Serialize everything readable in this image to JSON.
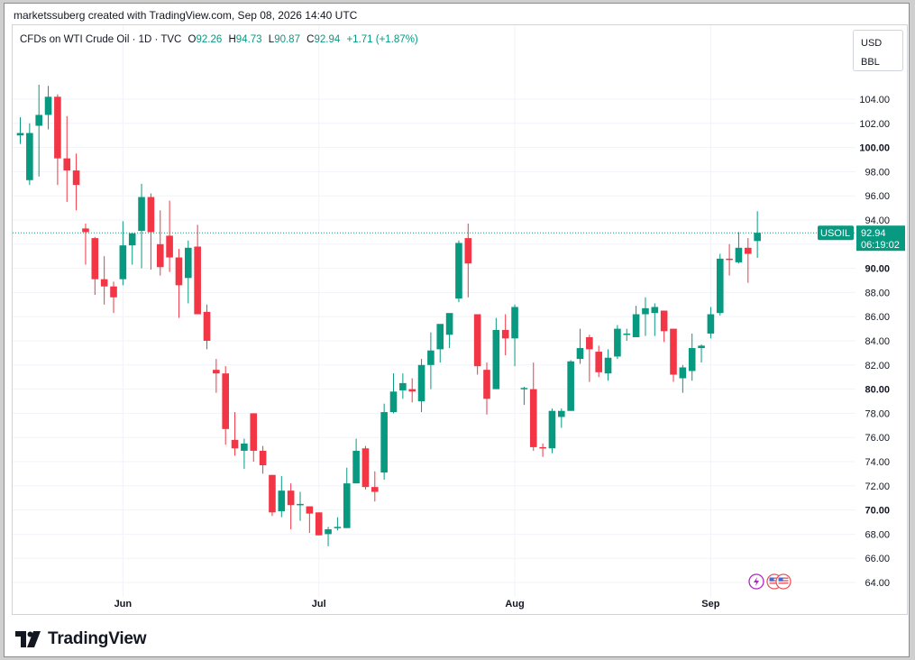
{
  "header": {
    "caption": "marketssuberg created with TradingView.com, Sep 08, 2026 14:40 UTC"
  },
  "legend": {
    "symbol": "CFDs on WTI Crude Oil · 1D · TVC",
    "open_label": "O",
    "open": "92.26",
    "high_label": "H",
    "high": "94.73",
    "low_label": "L",
    "low": "90.87",
    "close_label": "C",
    "close": "92.94",
    "change": "+1.71 (+1.87%)"
  },
  "units": {
    "currency": "USD",
    "unit": "BBL"
  },
  "price_tag": {
    "ticker": "USOIL",
    "price": "92.94",
    "countdown": "06:19:02"
  },
  "footer": {
    "brand": "TradingView"
  },
  "colors": {
    "up": "#089981",
    "down": "#f23645",
    "grid": "#f0f3fa",
    "axis_text": "#131722"
  },
  "icons": [
    "lightning-icon",
    "us-flag-icon",
    "calendar-flag-icon"
  ],
  "chart_data": {
    "type": "candlestick",
    "title": "CFDs on WTI Crude Oil · 1D · TVC",
    "y_axis": {
      "ticks": [
        "104.00",
        "102.00",
        "100.00",
        "98.00",
        "96.00",
        "94.00",
        "92.00",
        "90.00",
        "88.00",
        "86.00",
        "84.00",
        "82.00",
        "80.00",
        "78.00",
        "76.00",
        "74.00",
        "72.00",
        "70.00",
        "68.00",
        "66.00",
        "64.00"
      ],
      "bold_ticks": [
        "100.00",
        "90.00",
        "80.00",
        "70.00"
      ],
      "range": [
        62.5,
        105.7
      ]
    },
    "x_axis": {
      "labels": [
        {
          "text": "Jun",
          "index": 11
        },
        {
          "text": "Jul",
          "index": 32
        },
        {
          "text": "Aug",
          "index": 53
        },
        {
          "text": "Sep",
          "index": 74
        }
      ]
    },
    "last_price": 92.94,
    "candles": [
      {
        "o": 101.0,
        "h": 102.5,
        "l": 100.3,
        "c": 101.2
      },
      {
        "o": 97.3,
        "h": 102.0,
        "l": 96.9,
        "c": 101.2
      },
      {
        "o": 101.8,
        "h": 105.2,
        "l": 97.6,
        "c": 102.7
      },
      {
        "o": 102.7,
        "h": 105.1,
        "l": 101.5,
        "c": 104.2
      },
      {
        "o": 104.2,
        "h": 104.4,
        "l": 96.9,
        "c": 99.1
      },
      {
        "o": 99.1,
        "h": 102.6,
        "l": 95.5,
        "c": 98.1
      },
      {
        "o": 98.1,
        "h": 99.5,
        "l": 94.8,
        "c": 96.9
      },
      {
        "o": 93.3,
        "h": 93.7,
        "l": 90.3,
        "c": 93.0
      },
      {
        "o": 92.5,
        "h": 92.6,
        "l": 87.8,
        "c": 89.1
      },
      {
        "o": 89.1,
        "h": 91.0,
        "l": 87.0,
        "c": 88.5
      },
      {
        "o": 88.5,
        "h": 88.9,
        "l": 86.3,
        "c": 87.6
      },
      {
        "o": 89.1,
        "h": 93.9,
        "l": 88.6,
        "c": 91.9
      },
      {
        "o": 91.9,
        "h": 92.6,
        "l": 90.3,
        "c": 92.9
      },
      {
        "o": 93.1,
        "h": 97.0,
        "l": 90.0,
        "c": 95.9
      },
      {
        "o": 95.9,
        "h": 96.2,
        "l": 89.9,
        "c": 93.0
      },
      {
        "o": 92.0,
        "h": 94.8,
        "l": 89.4,
        "c": 90.1
      },
      {
        "o": 92.7,
        "h": 95.6,
        "l": 89.7,
        "c": 90.9
      },
      {
        "o": 90.9,
        "h": 91.6,
        "l": 85.9,
        "c": 88.6
      },
      {
        "o": 89.2,
        "h": 92.3,
        "l": 87.1,
        "c": 91.7
      },
      {
        "o": 91.8,
        "h": 93.6,
        "l": 86.4,
        "c": 86.2
      },
      {
        "o": 86.4,
        "h": 87.0,
        "l": 83.3,
        "c": 84.0
      },
      {
        "o": 81.6,
        "h": 82.5,
        "l": 79.7,
        "c": 81.3
      },
      {
        "o": 81.3,
        "h": 81.9,
        "l": 75.4,
        "c": 76.7
      },
      {
        "o": 75.8,
        "h": 78.1,
        "l": 74.5,
        "c": 75.1
      },
      {
        "o": 74.9,
        "h": 75.9,
        "l": 73.4,
        "c": 75.5
      },
      {
        "o": 78.0,
        "h": 78.0,
        "l": 74.0,
        "c": 74.9
      },
      {
        "o": 74.9,
        "h": 75.3,
        "l": 73.0,
        "c": 73.7
      },
      {
        "o": 72.9,
        "h": 72.9,
        "l": 69.5,
        "c": 69.8
      },
      {
        "o": 69.9,
        "h": 72.8,
        "l": 69.4,
        "c": 71.6
      },
      {
        "o": 71.6,
        "h": 72.2,
        "l": 68.4,
        "c": 70.4
      },
      {
        "o": 70.4,
        "h": 71.5,
        "l": 69.1,
        "c": 70.5
      },
      {
        "o": 70.3,
        "h": 70.3,
        "l": 68.1,
        "c": 69.7
      },
      {
        "o": 69.8,
        "h": 69.8,
        "l": 67.9,
        "c": 67.9
      },
      {
        "o": 68.0,
        "h": 68.6,
        "l": 67.0,
        "c": 68.4
      },
      {
        "o": 68.6,
        "h": 69.4,
        "l": 68.3,
        "c": 68.6
      },
      {
        "o": 68.5,
        "h": 73.5,
        "l": 68.5,
        "c": 72.2
      },
      {
        "o": 72.2,
        "h": 75.9,
        "l": 72.2,
        "c": 74.9
      },
      {
        "o": 75.1,
        "h": 75.3,
        "l": 71.7,
        "c": 71.9
      },
      {
        "o": 71.9,
        "h": 73.2,
        "l": 70.7,
        "c": 71.5
      },
      {
        "o": 73.1,
        "h": 78.8,
        "l": 72.5,
        "c": 78.1
      },
      {
        "o": 78.1,
        "h": 81.3,
        "l": 78.0,
        "c": 79.8
      },
      {
        "o": 79.9,
        "h": 81.3,
        "l": 79.2,
        "c": 80.5
      },
      {
        "o": 80.0,
        "h": 80.9,
        "l": 78.9,
        "c": 79.8
      },
      {
        "o": 79.0,
        "h": 82.5,
        "l": 78.1,
        "c": 82.0
      },
      {
        "o": 82.0,
        "h": 84.7,
        "l": 80.0,
        "c": 83.2
      },
      {
        "o": 83.3,
        "h": 85.1,
        "l": 82.2,
        "c": 85.4
      },
      {
        "o": 84.5,
        "h": 86.2,
        "l": 83.4,
        "c": 86.3
      },
      {
        "o": 87.5,
        "h": 92.3,
        "l": 87.2,
        "c": 92.1
      },
      {
        "o": 92.5,
        "h": 93.7,
        "l": 87.6,
        "c": 90.4
      },
      {
        "o": 86.2,
        "h": 86.2,
        "l": 81.2,
        "c": 81.9
      },
      {
        "o": 81.6,
        "h": 82.2,
        "l": 77.9,
        "c": 79.2
      },
      {
        "o": 80.0,
        "h": 85.9,
        "l": 80.0,
        "c": 84.9
      },
      {
        "o": 84.9,
        "h": 86.2,
        "l": 82.8,
        "c": 84.2
      },
      {
        "o": 84.2,
        "h": 87.0,
        "l": 81.9,
        "c": 86.8
      },
      {
        "o": 80.1,
        "h": 80.2,
        "l": 78.7,
        "c": 80.1
      },
      {
        "o": 80.0,
        "h": 82.2,
        "l": 74.9,
        "c": 75.2
      },
      {
        "o": 75.2,
        "h": 75.5,
        "l": 74.4,
        "c": 75.1
      },
      {
        "o": 75.1,
        "h": 78.4,
        "l": 74.7,
        "c": 78.2
      },
      {
        "o": 77.7,
        "h": 78.4,
        "l": 76.8,
        "c": 78.2
      },
      {
        "o": 78.2,
        "h": 82.4,
        "l": 78.2,
        "c": 82.3
      },
      {
        "o": 82.5,
        "h": 85.0,
        "l": 82.1,
        "c": 83.4
      },
      {
        "o": 84.3,
        "h": 84.5,
        "l": 80.6,
        "c": 83.3
      },
      {
        "o": 83.1,
        "h": 83.6,
        "l": 81.0,
        "c": 81.4
      },
      {
        "o": 81.3,
        "h": 83.3,
        "l": 80.7,
        "c": 82.6
      },
      {
        "o": 82.7,
        "h": 85.3,
        "l": 82.5,
        "c": 85.0
      },
      {
        "o": 84.5,
        "h": 85.0,
        "l": 84.0,
        "c": 84.6
      },
      {
        "o": 84.3,
        "h": 86.9,
        "l": 84.3,
        "c": 86.2
      },
      {
        "o": 86.2,
        "h": 87.6,
        "l": 84.4,
        "c": 86.7
      },
      {
        "o": 86.3,
        "h": 87.1,
        "l": 84.4,
        "c": 86.8
      },
      {
        "o": 86.5,
        "h": 86.4,
        "l": 83.9,
        "c": 84.8
      },
      {
        "o": 85.0,
        "h": 85.0,
        "l": 80.6,
        "c": 81.2
      },
      {
        "o": 80.9,
        "h": 82.0,
        "l": 79.7,
        "c": 81.8
      },
      {
        "o": 81.5,
        "h": 84.6,
        "l": 80.7,
        "c": 83.4
      },
      {
        "o": 83.4,
        "h": 83.7,
        "l": 82.2,
        "c": 83.6
      },
      {
        "o": 84.6,
        "h": 86.8,
        "l": 84.2,
        "c": 86.2
      },
      {
        "o": 86.3,
        "h": 91.2,
        "l": 86.1,
        "c": 90.8
      },
      {
        "o": 90.8,
        "h": 92.0,
        "l": 89.4,
        "c": 90.7
      },
      {
        "o": 90.5,
        "h": 93.0,
        "l": 90.4,
        "c": 91.7
      },
      {
        "o": 91.7,
        "h": 92.5,
        "l": 88.8,
        "c": 91.2
      },
      {
        "o": 92.26,
        "h": 94.73,
        "l": 90.87,
        "c": 92.94
      }
    ]
  }
}
